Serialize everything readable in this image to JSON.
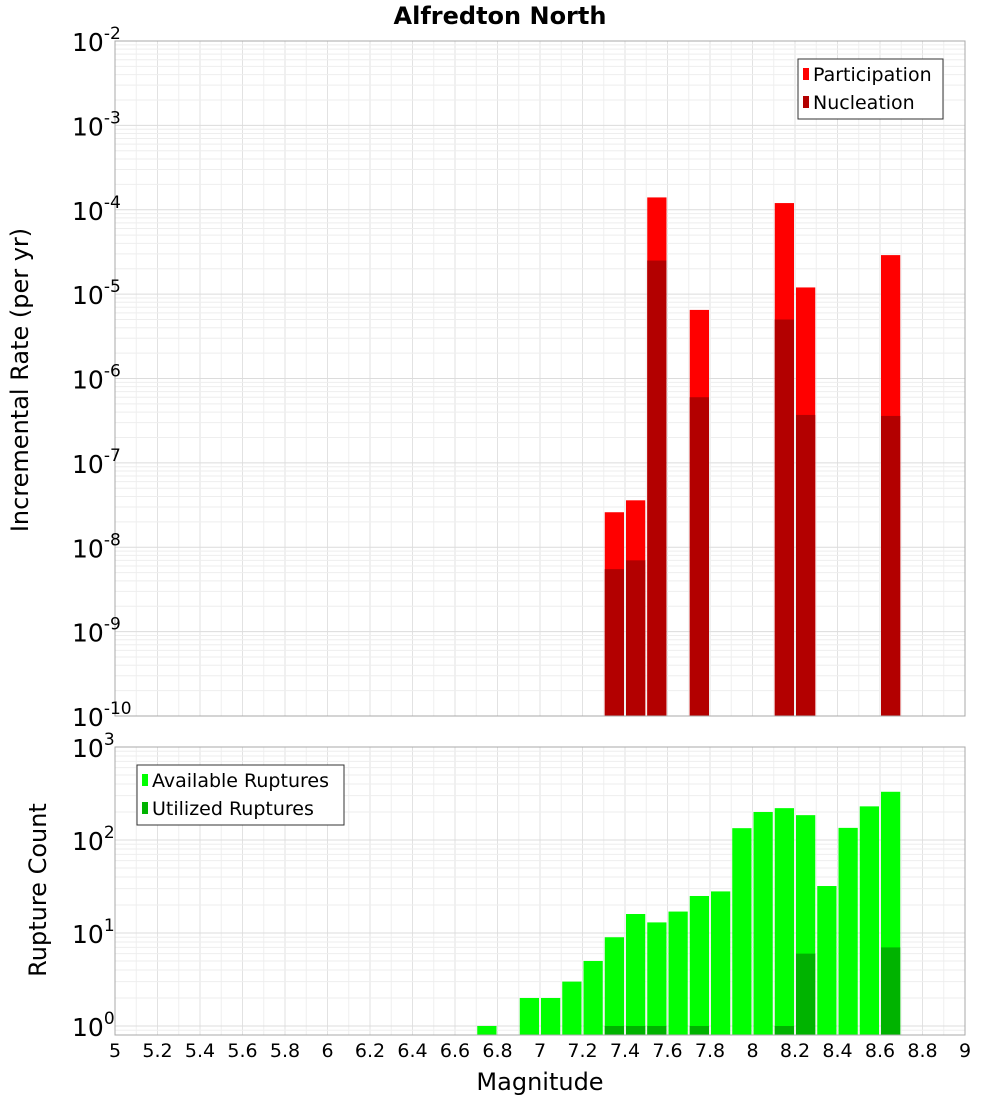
{
  "chart_data": [
    {
      "type": "bar",
      "panel": "top",
      "title": "Alfredton North",
      "ylabel": "Incremental Rate (per yr)",
      "xlabel": "",
      "y_scale": "log",
      "ylim": [
        1e-10,
        0.01
      ],
      "xlim": [
        5,
        9
      ],
      "bar_width": 0.1,
      "legend_position": "top-right",
      "legend": [
        "Participation",
        "Nucleation"
      ],
      "series": [
        {
          "name": "Participation",
          "color": "#ff0000",
          "x": [
            7.35,
            7.45,
            7.55,
            7.75,
            8.15,
            8.25,
            8.65
          ],
          "values": [
            2.6e-08,
            3.6e-08,
            0.00014,
            6.5e-06,
            0.00012,
            1.2e-05,
            2.9e-05
          ]
        },
        {
          "name": "Nucleation",
          "color": "#b30000",
          "x": [
            7.35,
            7.45,
            7.55,
            7.75,
            8.15,
            8.25,
            8.65
          ],
          "values": [
            5.5e-09,
            7e-09,
            2.5e-05,
            6e-07,
            5e-06,
            3.7e-07,
            3.6e-07
          ]
        }
      ],
      "y_ticks": [
        {
          "base": "10",
          "exp": "-10",
          "value": 1e-10
        },
        {
          "base": "10",
          "exp": "-9",
          "value": 1e-09
        },
        {
          "base": "10",
          "exp": "-8",
          "value": 1e-08
        },
        {
          "base": "10",
          "exp": "-7",
          "value": 1e-07
        },
        {
          "base": "10",
          "exp": "-6",
          "value": 1e-06
        },
        {
          "base": "10",
          "exp": "-5",
          "value": 1e-05
        },
        {
          "base": "10",
          "exp": "-4",
          "value": 0.0001
        },
        {
          "base": "10",
          "exp": "-3",
          "value": 0.001
        },
        {
          "base": "10",
          "exp": "-2",
          "value": 0.01
        }
      ]
    },
    {
      "type": "bar",
      "panel": "bottom",
      "title": "",
      "ylabel": "Rupture Count",
      "xlabel": "Magnitude",
      "y_scale": "log",
      "ylim": [
        0.8,
        1000
      ],
      "xlim": [
        5,
        9
      ],
      "bar_width": 0.1,
      "legend_position": "top-left",
      "legend": [
        "Available Ruptures",
        "Utilized Ruptures"
      ],
      "series": [
        {
          "name": "Available Ruptures",
          "color": "#00ff00",
          "x": [
            6.75,
            6.95,
            7.05,
            7.15,
            7.25,
            7.35,
            7.45,
            7.55,
            7.65,
            7.75,
            7.85,
            7.95,
            8.05,
            8.15,
            8.25,
            8.35,
            8.45,
            8.55,
            8.65
          ],
          "values": [
            1,
            2,
            2,
            3,
            5,
            9,
            16,
            13,
            17,
            25,
            28,
            134,
            200,
            220,
            185,
            32,
            135,
            230,
            330
          ]
        },
        {
          "name": "Utilized Ruptures",
          "color": "#00b300",
          "x": [
            7.35,
            7.45,
            7.55,
            7.75,
            8.15,
            8.25,
            8.65
          ],
          "values": [
            1,
            1,
            1,
            1,
            1,
            6,
            7
          ]
        }
      ],
      "y_ticks": [
        {
          "base": "10",
          "exp": "0",
          "value": 1
        },
        {
          "base": "10",
          "exp": "1",
          "value": 10
        },
        {
          "base": "10",
          "exp": "2",
          "value": 100
        },
        {
          "base": "10",
          "exp": "3",
          "value": 1000
        }
      ],
      "x_ticks": [
        "5",
        "5.2",
        "5.4",
        "5.6",
        "5.8",
        "6",
        "6.2",
        "6.4",
        "6.6",
        "6.8",
        "7",
        "7.2",
        "7.4",
        "7.6",
        "7.8",
        "8",
        "8.2",
        "8.4",
        "8.6",
        "8.8",
        "9"
      ]
    }
  ]
}
